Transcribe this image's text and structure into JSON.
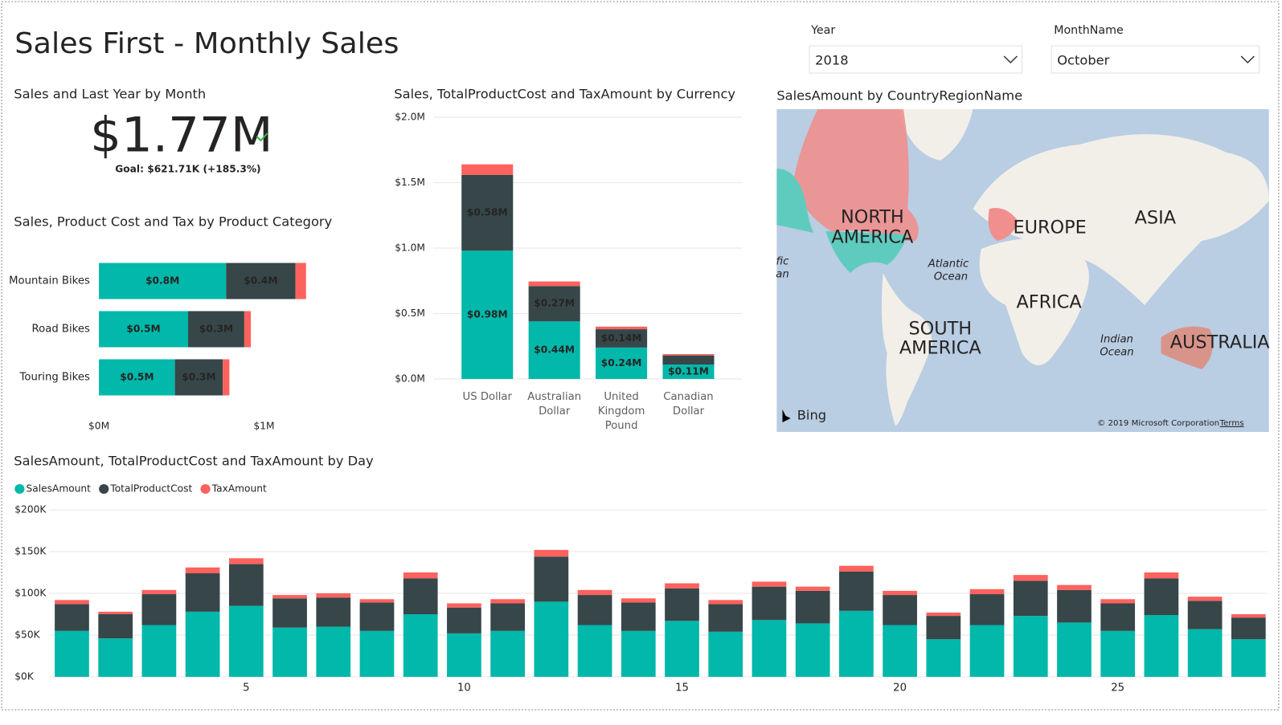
{
  "header": {
    "title": "Sales First - Monthly Sales"
  },
  "slicers": [
    {
      "label": "Year",
      "value": "2018"
    },
    {
      "label": "MonthName",
      "value": "October"
    }
  ],
  "kpi": {
    "title": "Sales and Last Year by Month",
    "value": "$1.77M",
    "goal": "Goal: $621.71K (+185.3%)"
  },
  "chart_data": [
    {
      "type": "bar",
      "orientation": "horizontal",
      "stacked": true,
      "title": "Sales, Product Cost and Tax by Product Category",
      "categories": [
        "Mountain Bikes",
        "Road Bikes",
        "Touring Bikes"
      ],
      "series": [
        {
          "name": "SalesAmount",
          "color": "#01B8AA",
          "values": [
            0.77,
            0.54,
            0.46
          ],
          "value_labels": [
            "$0.8M",
            "$0.5M",
            "$0.5M"
          ]
        },
        {
          "name": "TotalProductCost",
          "color": "#374649",
          "values": [
            0.42,
            0.34,
            0.29
          ],
          "value_labels": [
            "$0.4M",
            "$0.3M",
            "$0.3M"
          ]
        },
        {
          "name": "TaxAmount",
          "color": "#FD625E",
          "values": [
            0.064,
            0.04,
            0.04
          ]
        }
      ],
      "xlim": [
        0,
        1.25
      ],
      "xticks": [
        {
          "value": 0,
          "label": "$0M"
        },
        {
          "value": 1,
          "label": "$1M"
        }
      ],
      "grid": false
    },
    {
      "type": "bar",
      "orientation": "vertical",
      "stacked": true,
      "title": "Sales, TotalProductCost and TaxAmount by Currency",
      "categories": [
        "US Dollar",
        "Australian Dollar",
        "United Kingdom Pound",
        "Canadian Dollar"
      ],
      "series": [
        {
          "name": "SalesAmount",
          "color": "#01B8AA",
          "values": [
            0.98,
            0.44,
            0.24,
            0.11
          ],
          "value_labels": [
            "$0.98M",
            "$0.44M",
            "$0.24M",
            "$0.11M"
          ]
        },
        {
          "name": "TotalProductCost",
          "color": "#374649",
          "values": [
            0.58,
            0.27,
            0.14,
            0.07
          ],
          "value_labels": [
            "$0.58M",
            "$0.27M",
            "$0.14M",
            null
          ]
        },
        {
          "name": "TaxAmount",
          "color": "#FD625E",
          "values": [
            0.08,
            0.035,
            0.02,
            0.01
          ]
        }
      ],
      "ylim": [
        0,
        2
      ],
      "yticks": [
        {
          "value": 0,
          "label": "$0.0M"
        },
        {
          "value": 0.5,
          "label": "$0.5M"
        },
        {
          "value": 1,
          "label": "$1.0M"
        },
        {
          "value": 1.5,
          "label": "$1.5M"
        },
        {
          "value": 2,
          "label": "$2.0M"
        }
      ],
      "grid": true
    },
    {
      "type": "bar",
      "orientation": "vertical",
      "stacked": true,
      "title": "SalesAmount, TotalProductCost and TaxAmount by Day",
      "x": [
        1,
        2,
        3,
        4,
        5,
        6,
        7,
        8,
        9,
        10,
        11,
        12,
        13,
        14,
        15,
        16,
        17,
        18,
        19,
        20,
        21,
        22,
        23,
        24,
        25,
        26,
        27,
        28
      ],
      "series": [
        {
          "name": "SalesAmount",
          "color": "#01B8AA",
          "values": [
            55,
            46,
            62,
            78,
            85,
            59,
            60,
            55,
            75,
            52,
            55,
            90,
            62,
            55,
            67,
            54,
            68,
            64,
            79,
            62,
            45,
            62,
            73,
            65,
            55,
            74,
            57,
            45
          ]
        },
        {
          "name": "TotalProductCost",
          "color": "#374649",
          "values": [
            32,
            29,
            37,
            46,
            50,
            35,
            35,
            34,
            43,
            31,
            33,
            54,
            36,
            34,
            39,
            33,
            40,
            39,
            47,
            36,
            28,
            37,
            42,
            39,
            33,
            44,
            34,
            26
          ]
        },
        {
          "name": "TaxAmount",
          "color": "#FD625E",
          "values": [
            5,
            3,
            5,
            7,
            7,
            4,
            5,
            4,
            7,
            5,
            5,
            8,
            6,
            5,
            6,
            5,
            6,
            5,
            7,
            5,
            4,
            6,
            7,
            6,
            5,
            7,
            5,
            4
          ]
        }
      ],
      "xlim": [
        0.5,
        28.5
      ],
      "xticks": [
        5,
        10,
        15,
        20,
        25
      ],
      "ylim": [
        0,
        200
      ],
      "yticks": [
        {
          "value": 0,
          "label": "$0K"
        },
        {
          "value": 50,
          "label": "$50K"
        },
        {
          "value": 100,
          "label": "$100K"
        },
        {
          "value": 150,
          "label": "$150K"
        },
        {
          "value": 200,
          "label": "$200K"
        }
      ],
      "grid": true,
      "legend": "top-left"
    }
  ],
  "map": {
    "title": "SalesAmount by CountryRegionName",
    "labels": [
      "NORTH",
      "AMERICA",
      "EUROPE",
      "ASIA",
      "AFRICA",
      "SOUTH",
      "AMERICA",
      "AUSTRALIA",
      "Atlantic",
      "Ocean",
      "Indian",
      "Ocean",
      "fic",
      "an"
    ],
    "attribution": "Bing",
    "copyright": "© 2019 Microsoft Corporation",
    "terms": "Terms"
  }
}
